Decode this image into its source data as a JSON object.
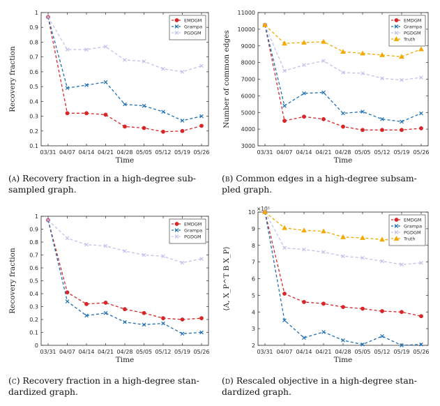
{
  "figure": {
    "captions": [
      {
        "label": "(a)",
        "text": "Recovery fraction in a high-degree sub-sampled graph."
      },
      {
        "label": "(b)",
        "text": "Common edges in a high-degree subsam-pled graph."
      },
      {
        "label": "(c)",
        "text": "Recovery fraction in a high-degree stan-dardized graph."
      },
      {
        "label": "(d)",
        "text": "Rescaled objective in a high-degree stan-dardized graph."
      }
    ]
  },
  "colors": {
    "EMDGM": "#d62728",
    "Grampa": "#1f6fb4",
    "PGDGM": "#c3c0ea",
    "Truth": "#f2a900"
  },
  "chart_data": [
    {
      "type": "line",
      "panel": "a",
      "title": "",
      "xlabel": "Time",
      "ylabel": "Recovery fraction",
      "categories": [
        "03/31",
        "04/07",
        "04/14",
        "04/21",
        "04/28",
        "05/05",
        "05/12",
        "05/19",
        "05/26"
      ],
      "ylim": [
        0.1,
        1
      ],
      "yticks": [
        0.1,
        0.2,
        0.3,
        0.4,
        0.5,
        0.6,
        0.7,
        0.8,
        0.9,
        1
      ],
      "ytick_labels": [
        "0.1",
        "0.2",
        "0.3",
        "0.4",
        "0.5",
        "0.6",
        "0.7",
        "0.8",
        "0.9",
        "1"
      ],
      "exponent_label": "",
      "legend_position": "top-right",
      "series": [
        {
          "name": "EMDGM",
          "marker": "dot",
          "values": [
            0.97,
            0.32,
            0.32,
            0.31,
            0.23,
            0.22,
            0.195,
            0.2,
            0.235
          ]
        },
        {
          "name": "Grampa",
          "marker": "x",
          "values": [
            0.97,
            0.49,
            0.51,
            0.53,
            0.38,
            0.37,
            0.33,
            0.27,
            0.3
          ]
        },
        {
          "name": "PGDGM",
          "marker": "x",
          "values": [
            0.97,
            0.75,
            0.75,
            0.77,
            0.68,
            0.67,
            0.62,
            0.6,
            0.64
          ]
        }
      ]
    },
    {
      "type": "line",
      "panel": "b",
      "title": "",
      "xlabel": "Time",
      "ylabel": "Number of common edges",
      "categories": [
        "03/31",
        "04/07",
        "04/14",
        "04/21",
        "04/28",
        "05/05",
        "05/12",
        "05/19",
        "05/26"
      ],
      "ylim": [
        3000,
        11000
      ],
      "yticks": [
        3000,
        4000,
        5000,
        6000,
        7000,
        8000,
        9000,
        10000,
        11000
      ],
      "ytick_labels": [
        "3000",
        "4000",
        "5000",
        "6000",
        "7000",
        "8000",
        "9000",
        "10000",
        "11000"
      ],
      "exponent_label": "",
      "legend_position": "top-right",
      "series": [
        {
          "name": "EMDGM",
          "marker": "dot",
          "values": [
            10250,
            4500,
            4750,
            4600,
            4150,
            3950,
            3950,
            3950,
            4050
          ]
        },
        {
          "name": "Grampa",
          "marker": "x",
          "values": [
            10250,
            5400,
            6150,
            6200,
            4950,
            5050,
            4600,
            4450,
            4950
          ]
        },
        {
          "name": "PGDGM",
          "marker": "x",
          "values": [
            10250,
            7500,
            7850,
            8100,
            7400,
            7350,
            7050,
            6950,
            7100
          ]
        },
        {
          "name": "Truth",
          "marker": "triangle",
          "values": [
            10250,
            9150,
            9200,
            9250,
            8650,
            8550,
            8450,
            8350,
            8800
          ]
        }
      ]
    },
    {
      "type": "line",
      "panel": "c",
      "title": "",
      "xlabel": "Time",
      "ylabel": "Recovery fraction",
      "categories": [
        "03/31",
        "04/07",
        "04/14",
        "04/21",
        "04/28",
        "05/05",
        "05/12",
        "05/19",
        "05/26"
      ],
      "ylim": [
        0,
        1
      ],
      "yticks": [
        0,
        0.1,
        0.2,
        0.3,
        0.4,
        0.5,
        0.6,
        0.7,
        0.8,
        0.9,
        1
      ],
      "ytick_labels": [
        "0",
        "0.1",
        "0.2",
        "0.3",
        "0.4",
        "0.5",
        "0.6",
        "0.7",
        "0.8",
        "0.9",
        "1"
      ],
      "exponent_label": "",
      "legend_position": "top-right",
      "series": [
        {
          "name": "EMDGM",
          "marker": "dot",
          "values": [
            0.97,
            0.41,
            0.32,
            0.33,
            0.28,
            0.25,
            0.21,
            0.2,
            0.21
          ]
        },
        {
          "name": "Grampa",
          "marker": "x",
          "values": [
            0.97,
            0.34,
            0.23,
            0.25,
            0.18,
            0.16,
            0.17,
            0.09,
            0.1
          ]
        },
        {
          "name": "PGDGM",
          "marker": "x",
          "values": [
            0.97,
            0.83,
            0.78,
            0.77,
            0.73,
            0.7,
            0.69,
            0.64,
            0.67
          ]
        }
      ]
    },
    {
      "type": "line",
      "panel": "d",
      "title": "",
      "xlabel": "Time",
      "ylabel": "⟨A, X_P^T B X_P⟩",
      "categories": [
        "03/31",
        "04/07",
        "04/14",
        "04/21",
        "04/28",
        "05/05",
        "05/12",
        "05/19",
        "05/26"
      ],
      "ylim": [
        2,
        10
      ],
      "yticks": [
        2,
        3,
        4,
        5,
        6,
        7,
        8,
        9,
        10
      ],
      "ytick_labels": [
        "2",
        "3",
        "4",
        "5",
        "6",
        "7",
        "8",
        "9",
        "10"
      ],
      "exponent_label": "×10⁵",
      "legend_position": "top-right",
      "series": [
        {
          "name": "EMDGM",
          "marker": "dot",
          "values": [
            10,
            5.1,
            4.6,
            4.5,
            4.3,
            4.2,
            4.05,
            4.0,
            3.75
          ]
        },
        {
          "name": "Grampa",
          "marker": "x",
          "values": [
            10,
            3.5,
            2.45,
            2.8,
            2.3,
            2.05,
            2.55,
            2.0,
            2.05
          ]
        },
        {
          "name": "PGDGM",
          "marker": "x",
          "values": [
            10,
            7.85,
            7.75,
            7.6,
            7.35,
            7.25,
            7.05,
            6.85,
            6.95
          ]
        },
        {
          "name": "Truth",
          "marker": "triangle",
          "values": [
            10,
            9.05,
            8.9,
            8.85,
            8.5,
            8.45,
            8.35,
            8.3,
            8.3
          ]
        }
      ]
    }
  ]
}
